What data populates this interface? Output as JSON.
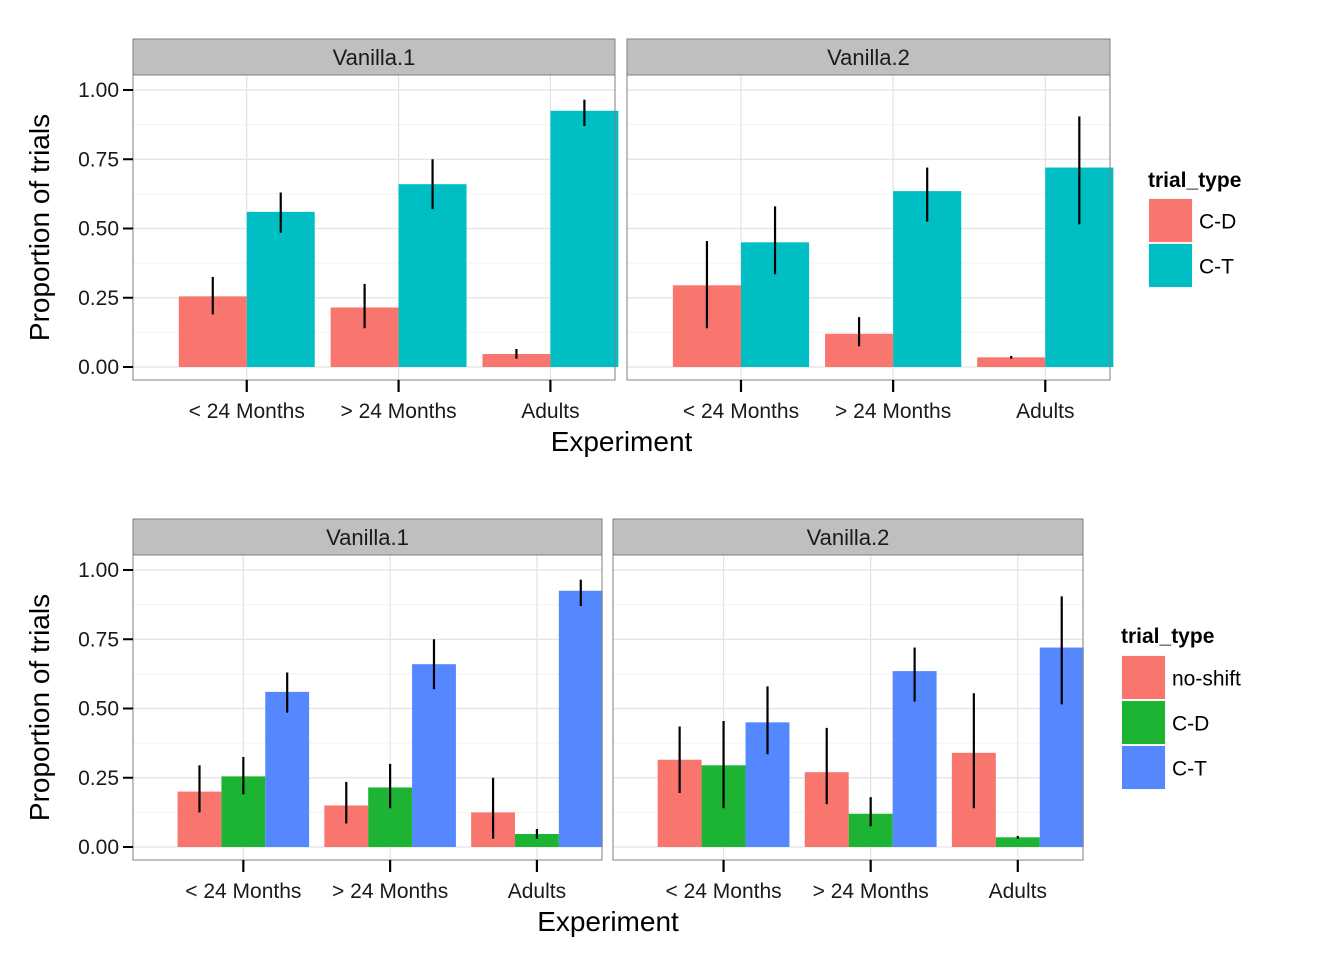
{
  "chart_data": [
    {
      "type": "bar",
      "ylabel": "Proportion of trials",
      "xlabel": "Experiment",
      "ylim": [
        0,
        1.05
      ],
      "yticks": [
        "0.00",
        "0.25",
        "0.50",
        "0.75",
        "1.00"
      ],
      "grid": true,
      "legend": {
        "title": "trial_type",
        "position": "right"
      },
      "categories": [
        "< 24 Months",
        "> 24 Months",
        "Adults"
      ],
      "series": [
        {
          "name": "C-D",
          "color": "#F8766D"
        },
        {
          "name": "C-T",
          "color": "#00BFC4"
        }
      ],
      "panels": [
        {
          "title": "Vanilla.1",
          "values": {
            "C-D": [
              0.255,
              0.215,
              0.047
            ],
            "C-T": [
              0.56,
              0.66,
              0.925
            ]
          },
          "err": {
            "C-D": [
              [
                0.19,
                0.325
              ],
              [
                0.14,
                0.3
              ],
              [
                0.03,
                0.065
              ]
            ],
            "C-T": [
              [
                0.485,
                0.63
              ],
              [
                0.57,
                0.75
              ],
              [
                0.87,
                0.965
              ]
            ]
          }
        },
        {
          "title": "Vanilla.2",
          "values": {
            "C-D": [
              0.295,
              0.12,
              0.035
            ],
            "C-T": [
              0.45,
              0.635,
              0.72
            ]
          },
          "err": {
            "C-D": [
              [
                0.14,
                0.455
              ],
              [
                0.075,
                0.18
              ],
              [
                0.03,
                0.04
              ]
            ],
            "C-T": [
              [
                0.335,
                0.58
              ],
              [
                0.525,
                0.72
              ],
              [
                0.515,
                0.905
              ]
            ]
          }
        }
      ]
    },
    {
      "type": "bar",
      "ylabel": "Proportion of trials",
      "xlabel": "Experiment",
      "ylim": [
        0,
        1.05
      ],
      "yticks": [
        "0.00",
        "0.25",
        "0.50",
        "0.75",
        "1.00"
      ],
      "grid": true,
      "legend": {
        "title": "trial_type",
        "position": "right"
      },
      "categories": [
        "< 24 Months",
        "> 24 Months",
        "Adults"
      ],
      "series": [
        {
          "name": "no-shift",
          "color": "#F8766D"
        },
        {
          "name": "C-D",
          "color": "#1EB433"
        },
        {
          "name": "C-T",
          "color": "#5588FF"
        }
      ],
      "panels": [
        {
          "title": "Vanilla.1",
          "values": {
            "no-shift": [
              0.2,
              0.15,
              0.125
            ],
            "C-D": [
              0.255,
              0.215,
              0.047
            ],
            "C-T": [
              0.56,
              0.66,
              0.925
            ]
          },
          "err": {
            "no-shift": [
              [
                0.125,
                0.295
              ],
              [
                0.085,
                0.235
              ],
              [
                0.03,
                0.25
              ]
            ],
            "C-D": [
              [
                0.19,
                0.325
              ],
              [
                0.14,
                0.3
              ],
              [
                0.03,
                0.065
              ]
            ],
            "C-T": [
              [
                0.485,
                0.63
              ],
              [
                0.57,
                0.75
              ],
              [
                0.87,
                0.965
              ]
            ]
          }
        },
        {
          "title": "Vanilla.2",
          "values": {
            "no-shift": [
              0.315,
              0.27,
              0.34
            ],
            "C-D": [
              0.295,
              0.12,
              0.035
            ],
            "C-T": [
              0.45,
              0.635,
              0.72
            ]
          },
          "err": {
            "no-shift": [
              [
                0.195,
                0.435
              ],
              [
                0.155,
                0.43
              ],
              [
                0.14,
                0.555
              ]
            ],
            "C-D": [
              [
                0.14,
                0.455
              ],
              [
                0.075,
                0.18
              ],
              [
                0.03,
                0.04
              ]
            ],
            "C-T": [
              [
                0.335,
                0.58
              ],
              [
                0.525,
                0.72
              ],
              [
                0.515,
                0.905
              ]
            ]
          }
        }
      ]
    }
  ]
}
